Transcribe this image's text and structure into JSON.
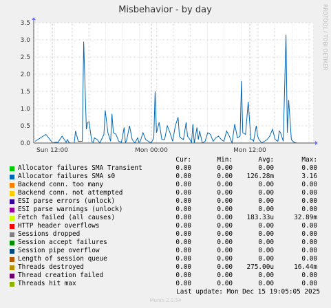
{
  "chart_data": {
    "type": "line",
    "title": "Misbehavior - by day",
    "watermark": "RRDTOOL / TOBI OETIKER",
    "ylim": [
      0,
      3.5
    ],
    "y_ticks": [
      "0.0",
      "0.5",
      "1.0",
      "1.5",
      "2.0",
      "2.5",
      "3.0",
      "3.5"
    ],
    "x_tick_labels": [
      "Sun 12:00",
      "Mon 00:00",
      "Mon 12:00"
    ],
    "grid": true,
    "series": [
      {
        "name": "Allocator failures SMA s0",
        "color": "#0066b3",
        "x_fraction_of_span": [
          0.0,
          0.02,
          0.04,
          0.055,
          0.06,
          0.065,
          0.075,
          0.085,
          0.1,
          0.115,
          0.12,
          0.125,
          0.13,
          0.145,
          0.15,
          0.16,
          0.175,
          0.18,
          0.19,
          0.195,
          0.2,
          0.21,
          0.215,
          0.22,
          0.23,
          0.24,
          0.255,
          0.26,
          0.27,
          0.28,
          0.285,
          0.29,
          0.3,
          0.31,
          0.32,
          0.33,
          0.335,
          0.34,
          0.35,
          0.36,
          0.37,
          0.38,
          0.385,
          0.39,
          0.4,
          0.41,
          0.42,
          0.43,
          0.44,
          0.445,
          0.45,
          0.46,
          0.47,
          0.48,
          0.49,
          0.5,
          0.51,
          0.52,
          0.53,
          0.535,
          0.54,
          0.55,
          0.56,
          0.565,
          0.57,
          0.58,
          0.585,
          0.59,
          0.6,
          0.605,
          0.61,
          0.62,
          0.63,
          0.64,
          0.65,
          0.66,
          0.67,
          0.68,
          0.69,
          0.7,
          0.71,
          0.72,
          0.73,
          0.74,
          0.75,
          0.76,
          0.765,
          0.77,
          0.78,
          0.79,
          0.8,
          0.805,
          0.81,
          0.82,
          0.825,
          0.83,
          0.84,
          0.85,
          0.86,
          0.87,
          0.88,
          0.89,
          0.9,
          0.905,
          0.91,
          0.92,
          0.93,
          0.935,
          0.94,
          0.95,
          0.96,
          0.97,
          0.98,
          1.0
        ],
        "values": [
          0.05,
          0.15,
          0.25,
          0.1,
          0.05,
          0.0,
          0.02,
          0.02,
          0.2,
          0.02,
          0.1,
          0.02,
          0.0,
          0.0,
          0.35,
          0.05,
          0.05,
          2.95,
          0.4,
          0.6,
          0.62,
          0.05,
          0.02,
          0.15,
          0.1,
          0.0,
          0.25,
          0.95,
          0.3,
          0.05,
          0.85,
          0.3,
          0.25,
          0.05,
          0.02,
          0.45,
          0.0,
          0.1,
          0.5,
          0.1,
          0.0,
          0.15,
          0.02,
          0.05,
          0.3,
          0.1,
          0.05,
          0.0,
          0.15,
          1.5,
          0.3,
          0.6,
          0.1,
          0.1,
          0.5,
          0.3,
          0.05,
          0.5,
          0.75,
          0.2,
          0.15,
          0.1,
          0.6,
          0.2,
          0.15,
          0.02,
          0.55,
          0.0,
          0.45,
          0.1,
          0.35,
          0.0,
          0.05,
          0.3,
          0.25,
          0.05,
          0.15,
          0.2,
          0.1,
          0.05,
          0.35,
          0.2,
          0.0,
          0.55,
          0.15,
          0.2,
          1.8,
          0.3,
          0.25,
          1.2,
          0.1,
          0.1,
          0.05,
          0.5,
          0.2,
          0.1,
          0.0,
          0.05,
          0.1,
          0.2,
          0.4,
          0.1,
          0.05,
          0.35,
          0.3,
          0.05,
          3.15,
          0.3,
          1.25,
          0.1,
          0.02,
          0.0,
          0.0,
          0.0
        ]
      }
    ]
  },
  "legend": {
    "headers": {
      "cur": "Cur:",
      "min": "Min:",
      "avg": "Avg:",
      "max": "Max:"
    },
    "rows": [
      {
        "name": "Allocator failures SMA Transient",
        "color": "#00cc00",
        "cur": "0.00",
        "min": "0.00",
        "avg": "0.00",
        "max": "0.00"
      },
      {
        "name": "Allocator failures SMA s0",
        "color": "#0066b3",
        "cur": "0.00",
        "min": "0.00",
        "avg": "126.28m",
        "max": "3.16"
      },
      {
        "name": "Backend conn. too many",
        "color": "#ff8000",
        "cur": "0.00",
        "min": "0.00",
        "avg": "0.00",
        "max": "0.00"
      },
      {
        "name": "Backend conn. not attempted",
        "color": "#ffcc00",
        "cur": "0.00",
        "min": "0.00",
        "avg": "0.00",
        "max": "0.00"
      },
      {
        "name": "ESI parse errors (unlock)",
        "color": "#330099",
        "cur": "0.00",
        "min": "0.00",
        "avg": "0.00",
        "max": "0.00"
      },
      {
        "name": "ESI parse warnings (unlock)",
        "color": "#990099",
        "cur": "0.00",
        "min": "0.00",
        "avg": "0.00",
        "max": "0.00"
      },
      {
        "name": "Fetch failed (all causes)",
        "color": "#ccff00",
        "cur": "0.00",
        "min": "0.00",
        "avg": "183.33u",
        "max": "32.89m"
      },
      {
        "name": "HTTP header overflows",
        "color": "#ff0000",
        "cur": "0.00",
        "min": "0.00",
        "avg": "0.00",
        "max": "0.00"
      },
      {
        "name": "Sessions dropped",
        "color": "#808080",
        "cur": "0.00",
        "min": "0.00",
        "avg": "0.00",
        "max": "0.00"
      },
      {
        "name": "Session accept failures",
        "color": "#008f00",
        "cur": "0.00",
        "min": "0.00",
        "avg": "0.00",
        "max": "0.00"
      },
      {
        "name": "Session pipe overflow",
        "color": "#00487d",
        "cur": "0.00",
        "min": "0.00",
        "avg": "0.00",
        "max": "0.00"
      },
      {
        "name": "Length of session queue",
        "color": "#b35a00",
        "cur": "0.00",
        "min": "0.00",
        "avg": "0.00",
        "max": "0.00"
      },
      {
        "name": "Threads destroyed",
        "color": "#b38f00",
        "cur": "0.00",
        "min": "0.00",
        "avg": "275.00u",
        "max": "16.44m"
      },
      {
        "name": "Thread creation failed",
        "color": "#6b006b",
        "cur": "0.00",
        "min": "0.00",
        "avg": "0.00",
        "max": "0.00"
      },
      {
        "name": "Threads hit max",
        "color": "#8fb300",
        "cur": "0.00",
        "min": "0.00",
        "avg": "0.00",
        "max": "0.00"
      }
    ]
  },
  "last_update": "Last update: Mon Dec 15 19:05:05 2025",
  "footer": "Munin 2.0.54"
}
